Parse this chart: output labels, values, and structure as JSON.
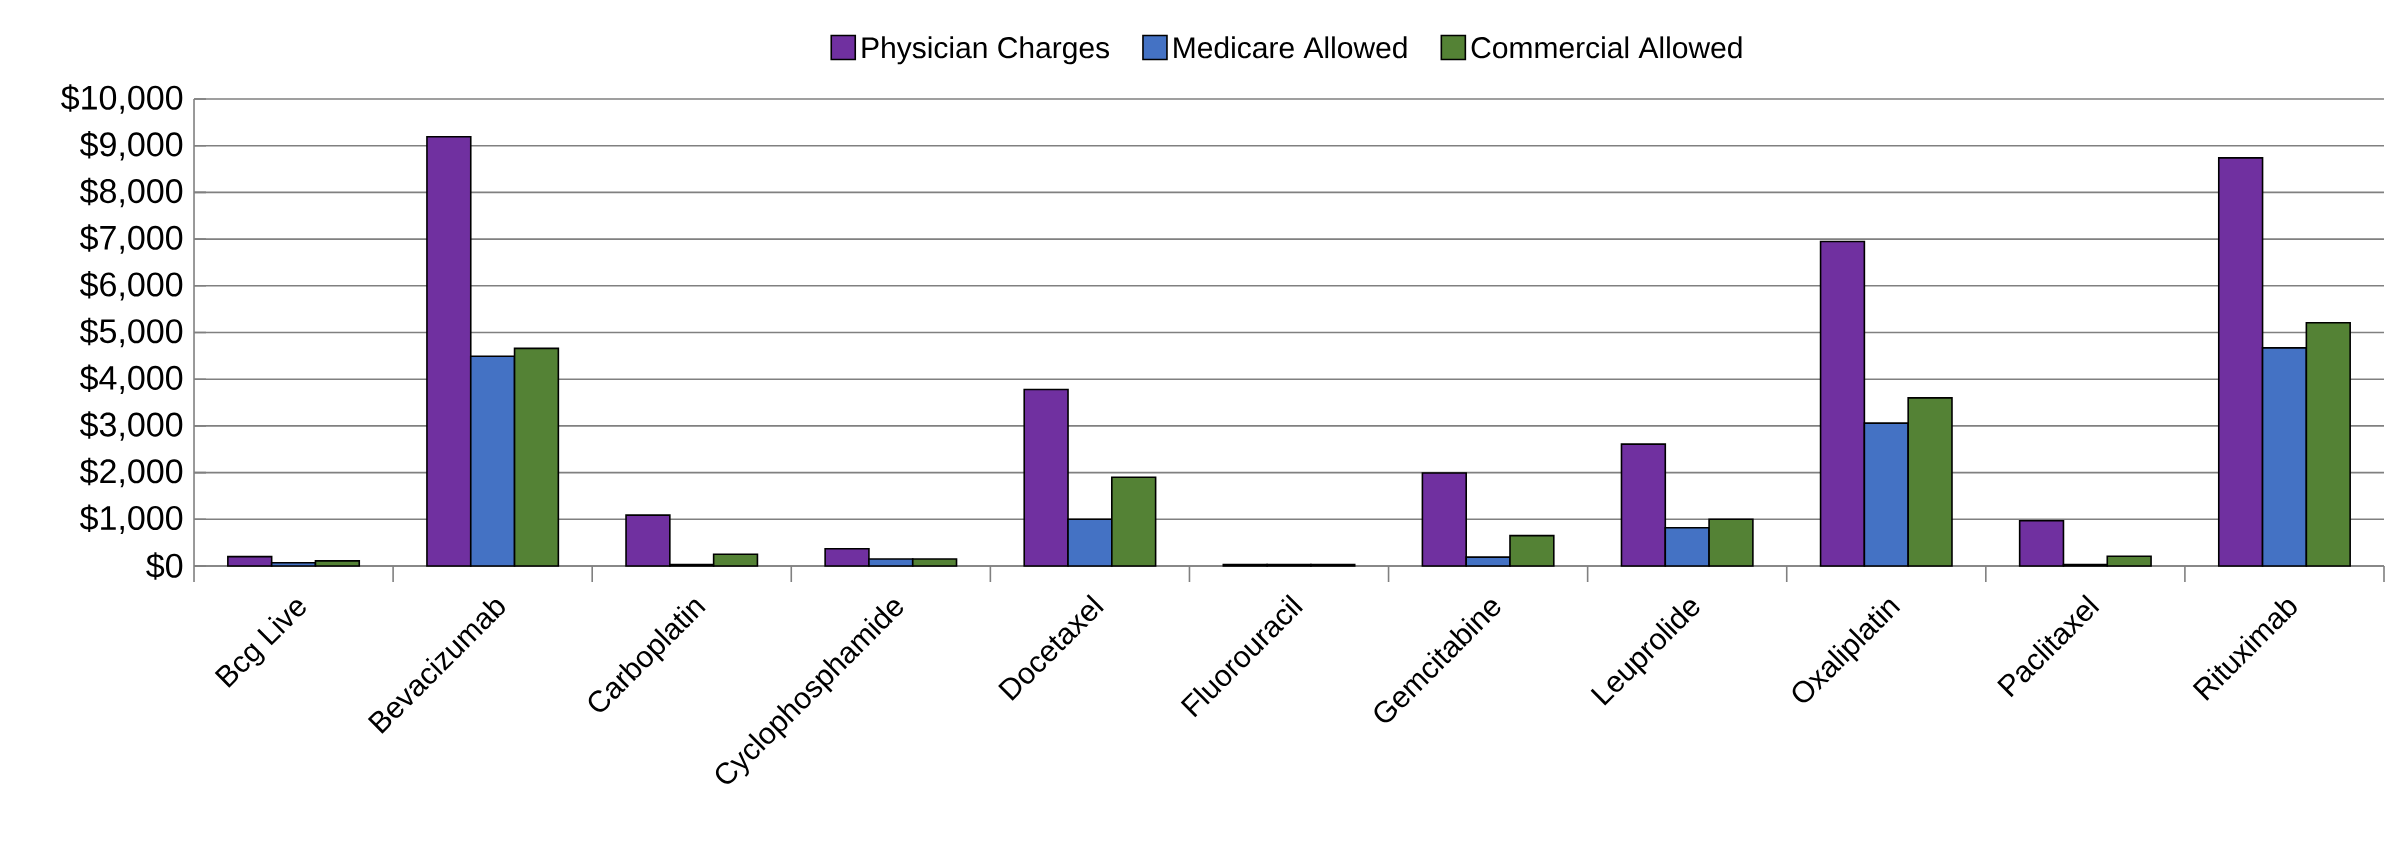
{
  "chart_data": {
    "type": "bar",
    "categories": [
      "Bcg Live",
      "Bevacizumab",
      "Carboplatin",
      "Cyclophosphamide",
      "Docetaxel",
      "Fluorouracil",
      "Gemcitabine",
      "Leuprolide",
      "Oxaliplatin",
      "Paclitaxel",
      "Rituximab"
    ],
    "series": [
      {
        "name": "Physician Charges",
        "color": "#7030a0",
        "values": [
          200,
          9190,
          1090,
          370,
          3780,
          30,
          1990,
          2610,
          6950,
          970,
          8740
        ]
      },
      {
        "name": "Medicare Allowed",
        "color": "#4472c4",
        "values": [
          70,
          4490,
          30,
          150,
          1000,
          30,
          190,
          820,
          3060,
          30,
          4670
        ]
      },
      {
        "name": "Commercial Allowed",
        "color": "#548235",
        "values": [
          110,
          4660,
          250,
          150,
          1900,
          30,
          650,
          1000,
          3600,
          210,
          5210
        ]
      }
    ],
    "ylim": [
      0,
      10000
    ],
    "yticks": [
      {
        "value": 0,
        "label": "$0"
      },
      {
        "value": 1000,
        "label": "$1,000"
      },
      {
        "value": 2000,
        "label": "$2,000"
      },
      {
        "value": 3000,
        "label": "$3,000"
      },
      {
        "value": 4000,
        "label": "$4,000"
      },
      {
        "value": 5000,
        "label": "$5,000"
      },
      {
        "value": 6000,
        "label": "$6,000"
      },
      {
        "value": 7000,
        "label": "$7,000"
      },
      {
        "value": 8000,
        "label": "$8,000"
      },
      {
        "value": 9000,
        "label": "$9,000"
      },
      {
        "value": 10000,
        "label": "$10,000"
      }
    ],
    "grid": "y",
    "legend": "top"
  }
}
